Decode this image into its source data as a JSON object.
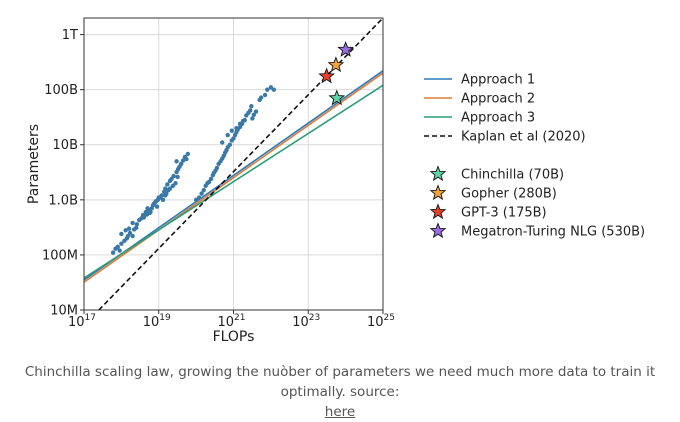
{
  "chart_data": {
    "type": "scatter",
    "xlabel": "FLOPs",
    "ylabel": "Parameters",
    "xscale": "log",
    "yscale": "log",
    "xlim": [
      1e+17,
      1e+25
    ],
    "ylim": [
      10000000.0,
      2000000000000.0
    ],
    "grid": true,
    "legend_position": "right",
    "x_ticks": [
      {
        "value": 1e+17,
        "base": "10",
        "exp": "17"
      },
      {
        "value": 1e+19,
        "base": "10",
        "exp": "19"
      },
      {
        "value": 1e+21,
        "base": "10",
        "exp": "21"
      },
      {
        "value": 1e+23,
        "base": "10",
        "exp": "23"
      },
      {
        "value": 1e+25,
        "base": "10",
        "exp": "25"
      }
    ],
    "y_ticks": [
      {
        "value": 10000000.0,
        "label": "10M"
      },
      {
        "value": 100000000.0,
        "label": "100M"
      },
      {
        "value": 1000000000.0,
        "label": "1.0B"
      },
      {
        "value": 10000000000.0,
        "label": "10B"
      },
      {
        "value": 100000000000.0,
        "label": "100B"
      },
      {
        "value": 1000000000000.0,
        "label": "1T"
      }
    ],
    "lines": [
      {
        "name": "Approach 1",
        "color": "#2b7bba",
        "style": "solid",
        "points": [
          [
            1e+17,
            35000000.0
          ],
          [
            1e+25,
            220000000000.0
          ]
        ]
      },
      {
        "name": "Approach 2",
        "color": "#e07b39",
        "style": "solid",
        "points": [
          [
            1e+17,
            32000000.0
          ],
          [
            1e+25,
            200000000000.0
          ]
        ]
      },
      {
        "name": "Approach 3",
        "color": "#2a9d78",
        "style": "solid",
        "points": [
          [
            1e+17,
            38000000.0
          ],
          [
            1e+25,
            120000000000.0
          ]
        ]
      },
      {
        "name": "Kaplan et al (2020)",
        "color": "#111111",
        "style": "dashed",
        "points": [
          [
            2.5e+17,
            10000000.0
          ],
          [
            1e+25,
            2000000000000.0
          ]
        ]
      }
    ],
    "scatter_color": "#3a78a8",
    "scatter_points": [
      [
        6e+17,
        110000000.0
      ],
      [
        7e+17,
        130000000.0
      ],
      [
        8e+17,
        140000000.0
      ],
      [
        9e+17,
        120000000.0
      ],
      [
        1e+18,
        160000000.0
      ],
      [
        1.2e+18,
        180000000.0
      ],
      [
        1.4e+18,
        200000000.0
      ],
      [
        1.5e+18,
        220000000.0
      ],
      [
        1.7e+18,
        250000000.0
      ],
      [
        2e+18,
        220000000.0
      ],
      [
        2.2e+18,
        290000000.0
      ],
      [
        2.5e+18,
        310000000.0
      ],
      [
        1e+18,
        240000000.0
      ],
      [
        1.3e+18,
        280000000.0
      ],
      [
        1.6e+18,
        300000000.0
      ],
      [
        2e+18,
        380000000.0
      ],
      [
        2.6e+18,
        360000000.0
      ],
      [
        3e+18,
        430000000.0
      ],
      [
        3.4e+18,
        460000000.0
      ],
      [
        3.8e+18,
        530000000.0
      ],
      [
        4e+18,
        480000000.0
      ],
      [
        4.5e+18,
        600000000.0
      ],
      [
        5e+18,
        700000000.0
      ],
      [
        5.5e+18,
        650000000.0
      ],
      [
        6e+18,
        600000000.0
      ],
      [
        7e+18,
        800000000.0
      ],
      [
        8e+18,
        900000000.0
      ],
      [
        9e+18,
        750000000.0
      ],
      [
        1e+19,
        1100000000.0
      ],
      [
        1.2e+19,
        1200000000.0
      ],
      [
        1.4e+19,
        1400000000.0
      ],
      [
        1.5e+19,
        1600000000.0
      ],
      [
        1.7e+19,
        1900000000.0
      ],
      [
        2e+19,
        2200000000.0
      ],
      [
        2.2e+19,
        2400000000.0
      ],
      [
        2.5e+19,
        2700000000.0
      ],
      [
        3e+19,
        3200000000.0
      ],
      [
        3.3e+19,
        3600000000.0
      ],
      [
        3.6e+19,
        4000000000.0
      ],
      [
        3e+19,
        5000000000.0
      ],
      [
        4e+19,
        4500000000.0
      ],
      [
        4.5e+19,
        5200000000.0
      ],
      [
        5e+19,
        6000000000.0
      ],
      [
        5.5e+19,
        5500000000.0
      ],
      [
        6e+19,
        6800000000.0
      ],
      [
        4.8e+18,
        540000000.0
      ],
      [
        5.2e+18,
        630000000.0
      ],
      [
        5.8e+18,
        580000000.0
      ],
      [
        6.5e+18,
        700000000.0
      ],
      [
        7.5e+18,
        850000000.0
      ],
      [
        8.5e+18,
        950000000.0
      ],
      [
        9.5e+18,
        1000000000.0
      ],
      [
        1.1e+19,
        1100000000.0
      ],
      [
        1.3e+19,
        1000000000.0
      ],
      [
        1.5e+19,
        1200000000.0
      ],
      [
        1.6e+19,
        1300000000.0
      ],
      [
        1.8e+19,
        1500000000.0
      ],
      [
        2e+19,
        1600000000.0
      ],
      [
        2.4e+19,
        1800000000.0
      ],
      [
        2.8e+19,
        2000000000.0
      ],
      [
        3.2e+19,
        2600000000.0
      ],
      [
        1e+20,
        1000000000.0
      ],
      [
        1.2e+20,
        1100000000.0
      ],
      [
        1.4e+20,
        1300000000.0
      ],
      [
        1.6e+20,
        1500000000.0
      ],
      [
        1.8e+20,
        1800000000.0
      ],
      [
        2e+20,
        2000000000.0
      ],
      [
        2.2e+20,
        2100000000.0
      ],
      [
        2.5e+20,
        2400000000.0
      ],
      [
        2.8e+20,
        2800000000.0
      ],
      [
        3e+20,
        3100000000.0
      ],
      [
        3.3e+20,
        3400000000.0
      ],
      [
        3.6e+20,
        3800000000.0
      ],
      [
        4e+20,
        4500000000.0
      ],
      [
        4.5e+20,
        5000000000.0
      ],
      [
        5e+20,
        5600000000.0
      ],
      [
        5.5e+20,
        6300000000.0
      ],
      [
        6e+20,
        7200000000.0
      ],
      [
        6.5e+20,
        8000000000.0
      ],
      [
        7e+20,
        9000000000.0
      ],
      [
        8e+20,
        10000000000.0
      ],
      [
        9e+20,
        12000000000.0
      ],
      [
        1e+21,
        13000000000.0
      ],
      [
        1.1e+21,
        15000000000.0
      ],
      [
        1.2e+21,
        17000000000.0
      ],
      [
        1.3e+21,
        19000000000.0
      ],
      [
        1.5e+21,
        21000000000.0
      ],
      [
        1.7e+21,
        24000000000.0
      ],
      [
        2e+21,
        28000000000.0
      ],
      [
        2.2e+21,
        34000000000.0
      ],
      [
        2.5e+21,
        38000000000.0
      ],
      [
        2.8e+21,
        42000000000.0
      ],
      [
        3e+21,
        50000000000.0
      ],
      [
        3.2e+21,
        30000000000.0
      ],
      [
        3.5e+21,
        35000000000.0
      ],
      [
        4e+21,
        40000000000.0
      ],
      [
        5e+21,
        65000000000.0
      ],
      [
        5.5e+21,
        72000000000.0
      ],
      [
        7e+21,
        80000000000.0
      ],
      [
        8e+21,
        100000000000.0
      ],
      [
        1e+22,
        110000000000.0
      ],
      [
        1.2e+22,
        100000000000.0
      ],
      [
        1.2e+21,
        20000000000.0
      ],
      [
        1.5e+21,
        24000000000.0
      ],
      [
        1.8e+21,
        27000000000.0
      ],
      [
        9e+20,
        18000000000.0
      ],
      [
        7e+20,
        15000000000.0
      ],
      [
        5e+20,
        11000000000.0
      ]
    ],
    "models": [
      {
        "name": "Chinchilla (70B)",
        "x": 5.8e+23,
        "y": 70000000000.0,
        "color": "#5fd3a6"
      },
      {
        "name": "Gopher (280B)",
        "x": 5.5e+23,
        "y": 280000000000.0,
        "color": "#f0a33a"
      },
      {
        "name": "GPT-3 (175B)",
        "x": 3.1e+23,
        "y": 175000000000.0,
        "color": "#e8402a"
      },
      {
        "name": "Megatron-Turing NLG (530B)",
        "x": 1e+24,
        "y": 530000000000.0,
        "color": "#9b6ee0"
      }
    ]
  },
  "caption": {
    "text": "Chinchilla scaling law, growing the nuòber of parameters we need much more data to train it optimally. source:",
    "link_text": "here"
  }
}
